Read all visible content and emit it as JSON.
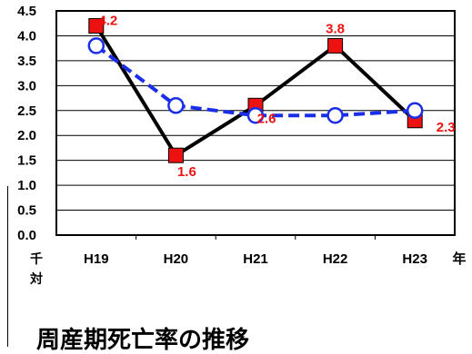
{
  "chart_data": {
    "type": "line",
    "categories": [
      "H19",
      "H20",
      "H21",
      "H22",
      "H23"
    ],
    "series": [
      {
        "values": [
          4.2,
          1.6,
          2.6,
          3.8,
          2.3
        ],
        "color": "#000000",
        "marker": "square",
        "marker_color": "#ee1111",
        "line_style": "solid"
      },
      {
        "values": [
          3.8,
          2.6,
          2.4,
          2.4,
          2.5
        ],
        "color": "#1a2ee8",
        "marker": "circle",
        "marker_color": "#ffffff",
        "line_style": "dashed"
      }
    ],
    "data_labels": [
      {
        "series": 0,
        "index": 0,
        "text": "4.2"
      },
      {
        "series": 0,
        "index": 1,
        "text": "1.6"
      },
      {
        "series": 0,
        "index": 2,
        "text": "2.6"
      },
      {
        "series": 0,
        "index": 3,
        "text": "3.8"
      },
      {
        "series": 0,
        "index": 4,
        "text": "2.3"
      }
    ],
    "data_label_color": "#ee1111",
    "yticks": [
      "0.0",
      "0.5",
      "1.0",
      "1.5",
      "2.0",
      "2.5",
      "3.0",
      "3.5",
      "4.0",
      "4.5"
    ],
    "ylim": [
      0,
      4.5
    ],
    "grid": true,
    "unit_label_chars": [
      "千",
      "対"
    ],
    "x_unit": "年",
    "caption": "周産期死亡率の推移"
  }
}
